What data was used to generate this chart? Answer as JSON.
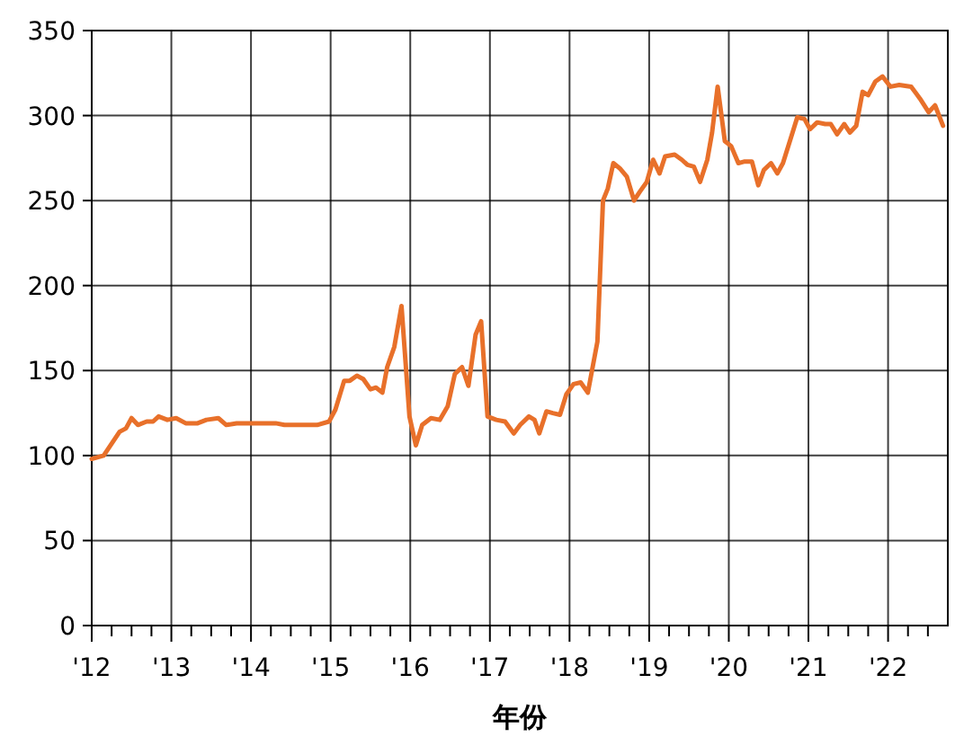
{
  "chart_data": {
    "type": "line",
    "xlabel": "年份",
    "x": [
      2012.0,
      2012.15,
      2012.35,
      2012.43,
      2012.5,
      2012.58,
      2012.69,
      2012.77,
      2012.84,
      2012.95,
      2013.06,
      2013.18,
      2013.33,
      2013.44,
      2013.59,
      2013.69,
      2013.82,
      2014.31,
      2014.42,
      2014.83,
      2014.98,
      2015.06,
      2015.17,
      2015.24,
      2015.33,
      2015.41,
      2015.5,
      2015.57,
      2015.65,
      2015.71,
      2015.8,
      2015.89,
      2015.99,
      2016.07,
      2016.15,
      2016.26,
      2016.37,
      2016.47,
      2016.56,
      2016.65,
      2016.73,
      2016.82,
      2016.89,
      2016.97,
      2017.08,
      2017.19,
      2017.3,
      2017.38,
      2017.49,
      2017.56,
      2017.62,
      2017.71,
      2017.79,
      2017.88,
      2017.96,
      2018.05,
      2018.14,
      2018.23,
      2018.35,
      2018.42,
      2018.48,
      2018.55,
      2018.63,
      2018.72,
      2018.81,
      2018.88,
      2018.97,
      2019.05,
      2019.13,
      2019.2,
      2019.32,
      2019.41,
      2019.48,
      2019.56,
      2019.64,
      2019.73,
      2019.79,
      2019.86,
      2019.95,
      2020.03,
      2020.12,
      2020.2,
      2020.29,
      2020.37,
      2020.44,
      2020.53,
      2020.61,
      2020.68,
      2020.78,
      2020.86,
      2020.95,
      2021.02,
      2021.11,
      2021.21,
      2021.28,
      2021.36,
      2021.45,
      2021.52,
      2021.6,
      2021.68,
      2021.75,
      2021.84,
      2021.93,
      2022.03,
      2022.14,
      2022.29,
      2022.4,
      2022.51,
      2022.59,
      2022.69
    ],
    "series": [
      {
        "color": "#e8702a",
        "values": [
          98,
          100,
          114,
          116,
          122,
          118,
          120,
          120,
          123,
          121,
          122,
          119,
          119,
          121,
          122,
          118,
          119,
          119,
          118,
          118,
          120,
          127,
          144,
          144,
          147,
          145,
          139,
          140,
          137,
          152,
          164,
          188,
          123,
          106,
          118,
          122,
          121,
          129,
          148,
          152,
          141,
          171,
          179,
          123,
          121,
          120,
          113,
          118,
          123,
          121,
          113,
          126,
          125,
          124,
          136,
          142,
          143,
          137,
          167,
          250,
          257,
          272,
          269,
          264,
          250,
          255,
          261,
          274,
          266,
          276,
          277,
          274,
          271,
          270,
          261,
          274,
          290,
          317,
          285,
          282,
          272,
          273,
          273,
          259,
          268,
          272,
          266,
          272,
          287,
          299,
          298,
          292,
          296,
          295,
          295,
          289,
          295,
          290,
          294,
          314,
          312,
          320,
          323,
          317,
          318,
          317,
          310,
          302,
          306,
          294
        ]
      }
    ],
    "xlim": [
      2012,
      2022.75
    ],
    "xticks": [
      {
        "value": 2012,
        "label": "'12"
      },
      {
        "value": 2012.25,
        "label": null
      },
      {
        "value": 2012.5,
        "label": null
      },
      {
        "value": 2012.75,
        "label": null
      },
      {
        "value": 2013,
        "label": "'13"
      },
      {
        "value": 2013.25,
        "label": null
      },
      {
        "value": 2013.5,
        "label": null
      },
      {
        "value": 2013.75,
        "label": null
      },
      {
        "value": 2014,
        "label": "'14"
      },
      {
        "value": 2014.25,
        "label": null
      },
      {
        "value": 2014.5,
        "label": null
      },
      {
        "value": 2014.75,
        "label": null
      },
      {
        "value": 2015,
        "label": "'15"
      },
      {
        "value": 2015.25,
        "label": null
      },
      {
        "value": 2015.5,
        "label": null
      },
      {
        "value": 2015.75,
        "label": null
      },
      {
        "value": 2016,
        "label": "'16"
      },
      {
        "value": 2016.25,
        "label": null
      },
      {
        "value": 2016.5,
        "label": null
      },
      {
        "value": 2016.75,
        "label": null
      },
      {
        "value": 2017,
        "label": "'17"
      },
      {
        "value": 2017.25,
        "label": null
      },
      {
        "value": 2017.5,
        "label": null
      },
      {
        "value": 2017.75,
        "label": null
      },
      {
        "value": 2018,
        "label": "'18"
      },
      {
        "value": 2018.25,
        "label": null
      },
      {
        "value": 2018.5,
        "label": null
      },
      {
        "value": 2018.75,
        "label": null
      },
      {
        "value": 2019,
        "label": "'19"
      },
      {
        "value": 2019.25,
        "label": null
      },
      {
        "value": 2019.5,
        "label": null
      },
      {
        "value": 2019.75,
        "label": null
      },
      {
        "value": 2020,
        "label": "'20"
      },
      {
        "value": 2020.25,
        "label": null
      },
      {
        "value": 2020.5,
        "label": null
      },
      {
        "value": 2020.75,
        "label": null
      },
      {
        "value": 2021,
        "label": "'21"
      },
      {
        "value": 2021.25,
        "label": null
      },
      {
        "value": 2021.5,
        "label": null
      },
      {
        "value": 2021.75,
        "label": null
      },
      {
        "value": 2022,
        "label": "'22"
      },
      {
        "value": 2022.25,
        "label": null
      },
      {
        "value": 2022.5,
        "label": null
      }
    ],
    "ylim": [
      0,
      350
    ],
    "yticks": [
      0,
      50,
      100,
      150,
      200,
      250,
      300,
      350
    ],
    "grid": true,
    "marker": "none",
    "line_style": "solid"
  }
}
